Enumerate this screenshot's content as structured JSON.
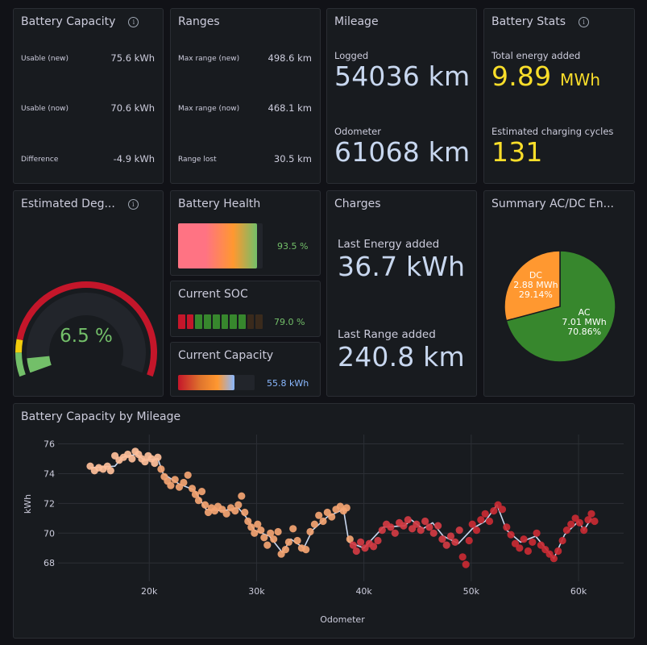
{
  "battery_capacity": {
    "title": "Battery Capacity",
    "rows": [
      {
        "label": "Usable (new)",
        "value": "75.6 kWh"
      },
      {
        "label": "Usable (now)",
        "value": "70.6 kWh"
      },
      {
        "label": "Difference",
        "value": "-4.9 kWh"
      }
    ]
  },
  "ranges": {
    "title": "Ranges",
    "rows": [
      {
        "label": "Max range (new)",
        "value": "498.6 km"
      },
      {
        "label": "Max range (now)",
        "value": "468.1 km"
      },
      {
        "label": "Range lost",
        "value": "30.5 km"
      }
    ]
  },
  "mileage": {
    "title": "Mileage",
    "logged_label": "Logged",
    "logged_value": "54036 km",
    "odometer_label": "Odometer",
    "odometer_value": "61068 km"
  },
  "battery_stats": {
    "title": "Battery Stats",
    "energy_label": "Total energy added",
    "energy_value": "9.89",
    "energy_unit": "MWh",
    "cycles_label": "Estimated charging cycles",
    "cycles_value": "131"
  },
  "degradation": {
    "title": "Estimated Deg...",
    "value_text": "6.5 %",
    "value": 6.5,
    "colors": {
      "good": "#73bf69",
      "warn": "#f2cc0c",
      "bad": "#c4162a"
    }
  },
  "battery_health": {
    "title": "Battery Health",
    "value_text": "93.5 %",
    "value": 93.5
  },
  "current_soc": {
    "title": "Current SOC",
    "value_text": "79.0 %",
    "value": 79.0,
    "segments": 10
  },
  "current_capacity": {
    "title": "Current Capacity",
    "value_text": "55.8 kWh",
    "value": 55.8,
    "max": 75.6
  },
  "charges": {
    "title": "Charges",
    "energy_label": "Last Energy added",
    "energy_value": "36.7 kWh",
    "range_label": "Last Range added",
    "range_value": "240.8 km"
  },
  "summary_acdc": {
    "title": "Summary AC/DC En...",
    "chart_data": {
      "type": "pie",
      "slices": [
        {
          "name": "AC",
          "value_text": "7.01 MWh",
          "percent_text": "70.86%",
          "value": 70.86,
          "color": "#37872d"
        },
        {
          "name": "DC",
          "value_text": "2.88 MWh",
          "percent_text": "29.14%",
          "value": 29.14,
          "color": "#ff9830"
        }
      ]
    }
  },
  "capacity_by_mileage": {
    "title": "Battery Capacity by Mileage",
    "chart_data": {
      "type": "scatter",
      "xlabel": "Odometer",
      "ylabel": "kWh",
      "xlim": [
        11500,
        64200
      ],
      "ylim": [
        67.2,
        76.3
      ],
      "x_ticks": [
        20000,
        30000,
        40000,
        50000,
        60000
      ],
      "x_tick_labels": [
        "20k",
        "30k",
        "40k",
        "50k",
        "60k"
      ],
      "y_ticks": [
        68,
        70,
        72,
        74,
        76
      ],
      "y_tick_labels": [
        "68",
        "70",
        "72",
        "74",
        "76"
      ],
      "grid": true,
      "line_color": "#c8d7ef",
      "points": [
        [
          14500,
          74.5
        ],
        [
          14900,
          74.2
        ],
        [
          15300,
          74.4
        ],
        [
          15700,
          74.3
        ],
        [
          16100,
          74.5
        ],
        [
          16400,
          74.2
        ],
        [
          16800,
          75.2
        ],
        [
          17200,
          74.9
        ],
        [
          17600,
          75.1
        ],
        [
          18000,
          75.3
        ],
        [
          18400,
          75.0
        ],
        [
          18700,
          75.5
        ],
        [
          19000,
          75.3
        ],
        [
          19300,
          75.0
        ],
        [
          19600,
          74.8
        ],
        [
          19900,
          75.2
        ],
        [
          20200,
          75.0
        ],
        [
          20500,
          74.7
        ],
        [
          20800,
          75.1
        ],
        [
          21100,
          74.3
        ],
        [
          21400,
          73.8
        ],
        [
          21700,
          73.5
        ],
        [
          22000,
          73.2
        ],
        [
          22400,
          73.6
        ],
        [
          22800,
          73.1
        ],
        [
          23200,
          73.4
        ],
        [
          23600,
          73.9
        ],
        [
          24000,
          73.0
        ],
        [
          24300,
          72.6
        ],
        [
          24600,
          72.2
        ],
        [
          24900,
          72.8
        ],
        [
          25200,
          71.9
        ],
        [
          25500,
          71.4
        ],
        [
          25800,
          71.7
        ],
        [
          26100,
          71.5
        ],
        [
          26400,
          71.8
        ],
        [
          26800,
          71.6
        ],
        [
          27200,
          71.3
        ],
        [
          27600,
          71.7
        ],
        [
          28000,
          71.5
        ],
        [
          28300,
          71.9
        ],
        [
          28600,
          72.5
        ],
        [
          28900,
          71.4
        ],
        [
          29200,
          70.8
        ],
        [
          29500,
          70.4
        ],
        [
          29800,
          70.0
        ],
        [
          30100,
          70.6
        ],
        [
          30400,
          70.2
        ],
        [
          30700,
          69.7
        ],
        [
          31000,
          69.2
        ],
        [
          31300,
          70.0
        ],
        [
          31600,
          69.6
        ],
        [
          32000,
          70.1
        ],
        [
          32300,
          68.6
        ],
        [
          32700,
          68.9
        ],
        [
          33000,
          69.4
        ],
        [
          33400,
          70.3
        ],
        [
          33800,
          69.5
        ],
        [
          34200,
          69.0
        ],
        [
          34600,
          68.9
        ],
        [
          35000,
          70.1
        ],
        [
          35400,
          70.6
        ],
        [
          35800,
          71.2
        ],
        [
          36200,
          70.8
        ],
        [
          36600,
          71.4
        ],
        [
          37000,
          71.1
        ],
        [
          37400,
          71.6
        ],
        [
          37800,
          71.8
        ],
        [
          38100,
          71.5
        ],
        [
          38400,
          71.7
        ],
        [
          38700,
          69.6
        ],
        [
          39000,
          69.2
        ],
        [
          39300,
          68.8
        ],
        [
          39700,
          69.4
        ],
        [
          40100,
          69.0
        ],
        [
          40500,
          69.3
        ],
        [
          40900,
          69.1
        ],
        [
          41300,
          69.5
        ],
        [
          41700,
          70.2
        ],
        [
          42100,
          70.6
        ],
        [
          42500,
          70.4
        ],
        [
          42900,
          70.0
        ],
        [
          43300,
          70.7
        ],
        [
          43700,
          70.5
        ],
        [
          44100,
          70.9
        ],
        [
          44500,
          70.3
        ],
        [
          44900,
          70.6
        ],
        [
          45300,
          70.2
        ],
        [
          45700,
          70.8
        ],
        [
          46100,
          70.4
        ],
        [
          46500,
          70.0
        ],
        [
          46900,
          70.5
        ],
        [
          47300,
          69.6
        ],
        [
          47700,
          69.2
        ],
        [
          48100,
          69.8
        ],
        [
          48500,
          69.4
        ],
        [
          48900,
          70.2
        ],
        [
          49200,
          68.4
        ],
        [
          49500,
          67.9
        ],
        [
          49800,
          69.5
        ],
        [
          50100,
          70.6
        ],
        [
          50500,
          70.2
        ],
        [
          50900,
          70.9
        ],
        [
          51300,
          71.3
        ],
        [
          51700,
          70.8
        ],
        [
          52100,
          71.5
        ],
        [
          52500,
          71.9
        ],
        [
          52900,
          71.6
        ],
        [
          53300,
          70.4
        ],
        [
          53700,
          69.9
        ],
        [
          54100,
          69.3
        ],
        [
          54500,
          69.0
        ],
        [
          54900,
          69.6
        ],
        [
          55300,
          68.8
        ],
        [
          55700,
          69.4
        ],
        [
          56100,
          70.0
        ],
        [
          56500,
          69.2
        ],
        [
          56900,
          68.9
        ],
        [
          57300,
          68.6
        ],
        [
          57700,
          68.3
        ],
        [
          58100,
          68.8
        ],
        [
          58500,
          69.5
        ],
        [
          58900,
          70.2
        ],
        [
          59300,
          70.6
        ],
        [
          59700,
          71.0
        ],
        [
          60100,
          70.7
        ],
        [
          60500,
          70.2
        ],
        [
          60900,
          70.9
        ],
        [
          61200,
          71.3
        ],
        [
          61500,
          70.8
        ]
      ],
      "line": [
        [
          14500,
          74.4
        ],
        [
          16800,
          74.5
        ],
        [
          17500,
          75.1
        ],
        [
          18800,
          75.3
        ],
        [
          19600,
          74.9
        ],
        [
          20800,
          75.0
        ],
        [
          21300,
          74.0
        ],
        [
          22800,
          73.3
        ],
        [
          24200,
          72.9
        ],
        [
          25300,
          71.6
        ],
        [
          26800,
          71.5
        ],
        [
          28300,
          71.7
        ],
        [
          29000,
          71.1
        ],
        [
          29800,
          70.2
        ],
        [
          31200,
          69.8
        ],
        [
          32400,
          68.7
        ],
        [
          33200,
          69.6
        ],
        [
          34400,
          69.0
        ],
        [
          35200,
          70.2
        ],
        [
          36600,
          71.1
        ],
        [
          38100,
          71.6
        ],
        [
          38600,
          69.4
        ],
        [
          40000,
          69.0
        ],
        [
          41800,
          70.4
        ],
        [
          43800,
          70.5
        ],
        [
          44400,
          70.9
        ],
        [
          45500,
          70.3
        ],
        [
          46400,
          70.7
        ],
        [
          47400,
          69.8
        ],
        [
          48800,
          69.3
        ],
        [
          50100,
          70.3
        ],
        [
          51300,
          70.8
        ],
        [
          52400,
          71.9
        ],
        [
          53300,
          70.2
        ],
        [
          54600,
          69.4
        ],
        [
          56000,
          69.8
        ],
        [
          57700,
          68.3
        ],
        [
          58700,
          69.9
        ],
        [
          60000,
          70.8
        ],
        [
          60500,
          70.2
        ],
        [
          61200,
          71.0
        ]
      ]
    }
  }
}
